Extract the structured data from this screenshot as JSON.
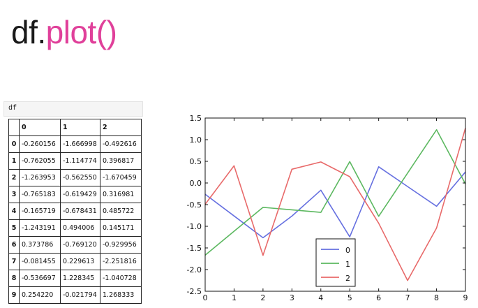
{
  "slide": {
    "title_prefix": "df.",
    "title_accent": "plot()"
  },
  "cell": {
    "code": "df"
  },
  "table": {
    "columns": [
      "0",
      "1",
      "2"
    ],
    "index": [
      "0",
      "1",
      "2",
      "3",
      "4",
      "5",
      "6",
      "7",
      "8",
      "9"
    ],
    "rows": [
      [
        "-0.260156",
        "-1.666998",
        "-0.492616"
      ],
      [
        "-0.762055",
        "-1.114774",
        "0.396817"
      ],
      [
        "-1.263953",
        "-0.562550",
        "-1.670459"
      ],
      [
        "-0.765183",
        "-0.619429",
        "0.316981"
      ],
      [
        "-0.165719",
        "-0.678431",
        "0.485722"
      ],
      [
        "-1.243191",
        "0.494006",
        "0.145171"
      ],
      [
        "0.373786",
        "-0.769120",
        "-0.929956"
      ],
      [
        "-0.081455",
        "0.229613",
        "-2.251816"
      ],
      [
        "-0.536697",
        "1.228345",
        "-1.040728"
      ],
      [
        "0.254220",
        "-0.021794",
        "1.268333"
      ]
    ]
  },
  "chart_data": {
    "type": "line",
    "x": [
      0,
      1,
      2,
      3,
      4,
      5,
      6,
      7,
      8,
      9
    ],
    "series": [
      {
        "name": "0",
        "color": "#6670e0",
        "values": [
          -0.260156,
          -0.762055,
          -1.263953,
          -0.765183,
          -0.165719,
          -1.243191,
          0.373786,
          -0.081455,
          -0.536697,
          0.25422
        ]
      },
      {
        "name": "1",
        "color": "#5cb860",
        "values": [
          -1.666998,
          -1.114774,
          -0.56255,
          -0.619429,
          -0.678431,
          0.494006,
          -0.76912,
          0.229613,
          1.228345,
          -0.021794
        ]
      },
      {
        "name": "2",
        "color": "#e86a6a",
        "values": [
          -0.492616,
          0.396817,
          -1.670459,
          0.316981,
          0.485722,
          0.145171,
          -0.929956,
          -2.251816,
          -1.040728,
          1.268333
        ]
      }
    ],
    "xlim": [
      0,
      9
    ],
    "ylim": [
      -2.5,
      1.5
    ],
    "xticks": [
      "0",
      "1",
      "2",
      "3",
      "4",
      "5",
      "6",
      "7",
      "8",
      "9"
    ],
    "yticks": [
      "-2.5",
      "-2.0",
      "-1.5",
      "-1.0",
      "-0.5",
      "0.0",
      "0.5",
      "1.0",
      "1.5"
    ],
    "legend_position": "bottom-center",
    "grid": false
  }
}
